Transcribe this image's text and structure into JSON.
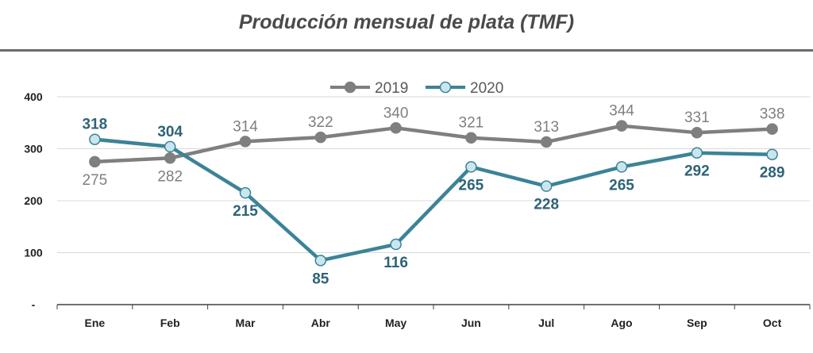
{
  "chart_data": {
    "type": "line",
    "title": "Producción mensual de plata (TMF)",
    "categories": [
      "Ene",
      "Feb",
      "Mar",
      "Abr",
      "May",
      "Jun",
      "Jul",
      "Ago",
      "Sep",
      "Oct"
    ],
    "series": [
      {
        "name": "2019",
        "values": [
          275,
          282,
          314,
          322,
          340,
          321,
          313,
          344,
          331,
          338
        ],
        "color": "#7f7f7f",
        "marker_fill": "#7f7f7f"
      },
      {
        "name": "2020",
        "values": [
          318,
          304,
          215,
          85,
          116,
          265,
          228,
          265,
          292,
          289
        ],
        "color": "#3c8397",
        "marker_fill": "#c9e6ee"
      }
    ],
    "yticks": [
      "-",
      "100",
      "200",
      "300",
      "400"
    ],
    "ylim": [
      0,
      400
    ],
    "grid": true,
    "legend": "top-center"
  }
}
